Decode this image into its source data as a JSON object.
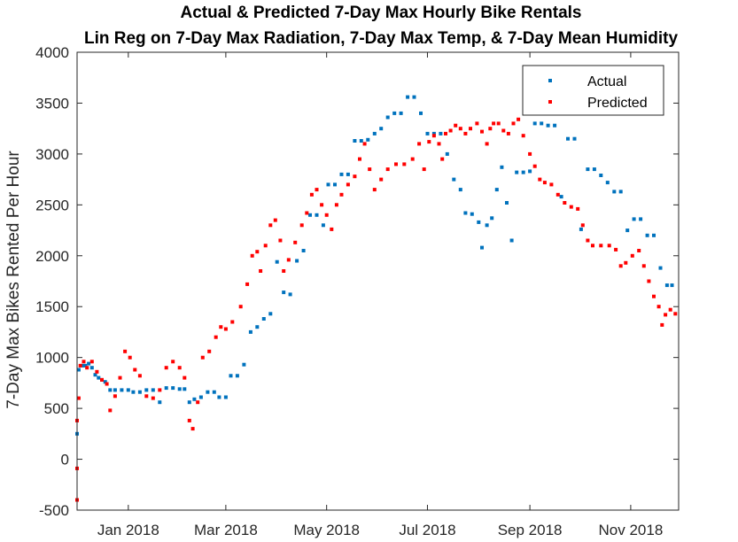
{
  "chart_data": {
    "type": "scatter",
    "title": [
      "Actual & Predicted 7-Day Max Hourly Bike Rentals",
      "Lin Reg on 7-Day Max Radiation, 7-Day Max Temp, & 7-Day Mean Humidity"
    ],
    "xlabel": "",
    "ylabel": "7-Day Max Bikes Rented Per Hour",
    "xlim": [
      "2017-12-01",
      "2018-11-30"
    ],
    "ylim": [
      -500,
      4000
    ],
    "yticks": [
      -500,
      0,
      500,
      1000,
      1500,
      2000,
      2500,
      3000,
      3500,
      4000
    ],
    "yticklabels": [
      "-500",
      "0",
      "500",
      "1000",
      "1500",
      "2000",
      "2500",
      "3000",
      "3500",
      "4000"
    ],
    "xticks": [
      "2018-01-01",
      "2018-03-01",
      "2018-05-01",
      "2018-07-01",
      "2018-09-01",
      "2018-11-01"
    ],
    "xticklabels": [
      "Jan 2018",
      "Mar 2018",
      "May 2018",
      "Jul 2018",
      "Sep 2018",
      "Nov 2018"
    ],
    "legend": {
      "position": "top-right",
      "entries": [
        "Actual",
        "Predicted"
      ]
    },
    "grid": false,
    "series": [
      {
        "name": "Actual",
        "color": "#0072BD",
        "points": [
          [
            "2017-12-01",
            250
          ],
          [
            "2017-12-02",
            880
          ],
          [
            "2017-12-04",
            920
          ],
          [
            "2017-12-06",
            920
          ],
          [
            "2017-12-08",
            940
          ],
          [
            "2017-12-10",
            900
          ],
          [
            "2017-12-12",
            830
          ],
          [
            "2017-12-14",
            800
          ],
          [
            "2017-12-16",
            780
          ],
          [
            "2017-12-18",
            760
          ],
          [
            "2017-12-21",
            680
          ],
          [
            "2017-12-24",
            680
          ],
          [
            "2017-12-28",
            680
          ],
          [
            "2018-01-01",
            680
          ],
          [
            "2018-01-04",
            660
          ],
          [
            "2018-01-08",
            660
          ],
          [
            "2018-01-12",
            680
          ],
          [
            "2018-01-16",
            680
          ],
          [
            "2018-01-20",
            560
          ],
          [
            "2018-01-24",
            700
          ],
          [
            "2018-01-28",
            700
          ],
          [
            "2018-02-01",
            690
          ],
          [
            "2018-02-04",
            690
          ],
          [
            "2018-02-07",
            560
          ],
          [
            "2018-02-10",
            590
          ],
          [
            "2018-02-14",
            610
          ],
          [
            "2018-02-18",
            660
          ],
          [
            "2018-02-22",
            660
          ],
          [
            "2018-02-25",
            610
          ],
          [
            "2018-03-01",
            610
          ],
          [
            "2018-03-04",
            820
          ],
          [
            "2018-03-08",
            820
          ],
          [
            "2018-03-12",
            930
          ],
          [
            "2018-03-16",
            1250
          ],
          [
            "2018-03-20",
            1300
          ],
          [
            "2018-03-24",
            1380
          ],
          [
            "2018-03-28",
            1430
          ],
          [
            "2018-04-01",
            1940
          ],
          [
            "2018-04-05",
            1640
          ],
          [
            "2018-04-09",
            1620
          ],
          [
            "2018-04-13",
            1950
          ],
          [
            "2018-04-17",
            2050
          ],
          [
            "2018-04-21",
            2400
          ],
          [
            "2018-04-25",
            2400
          ],
          [
            "2018-04-29",
            2300
          ],
          [
            "2018-05-02",
            2700
          ],
          [
            "2018-05-06",
            2700
          ],
          [
            "2018-05-10",
            2800
          ],
          [
            "2018-05-14",
            2800
          ],
          [
            "2018-05-18",
            3130
          ],
          [
            "2018-05-22",
            3130
          ],
          [
            "2018-05-26",
            3140
          ],
          [
            "2018-05-30",
            3200
          ],
          [
            "2018-06-03",
            3250
          ],
          [
            "2018-06-07",
            3360
          ],
          [
            "2018-06-11",
            3400
          ],
          [
            "2018-06-15",
            3400
          ],
          [
            "2018-06-19",
            3560
          ],
          [
            "2018-06-23",
            3560
          ],
          [
            "2018-06-27",
            3400
          ],
          [
            "2018-07-01",
            3200
          ],
          [
            "2018-07-05",
            3200
          ],
          [
            "2018-07-09",
            3200
          ],
          [
            "2018-07-13",
            3000
          ],
          [
            "2018-07-17",
            2750
          ],
          [
            "2018-07-21",
            2650
          ],
          [
            "2018-07-24",
            2420
          ],
          [
            "2018-07-28",
            2410
          ],
          [
            "2018-08-01",
            2330
          ],
          [
            "2018-08-03",
            2080
          ],
          [
            "2018-08-06",
            2300
          ],
          [
            "2018-08-09",
            2370
          ],
          [
            "2018-08-12",
            2650
          ],
          [
            "2018-08-15",
            2870
          ],
          [
            "2018-08-18",
            2520
          ],
          [
            "2018-08-21",
            2150
          ],
          [
            "2018-08-24",
            2820
          ],
          [
            "2018-08-28",
            2820
          ],
          [
            "2018-09-01",
            2830
          ],
          [
            "2018-09-04",
            3300
          ],
          [
            "2018-09-08",
            3300
          ],
          [
            "2018-09-12",
            3280
          ],
          [
            "2018-09-16",
            3280
          ],
          [
            "2018-09-20",
            2580
          ],
          [
            "2018-09-24",
            3150
          ],
          [
            "2018-09-28",
            3150
          ],
          [
            "2018-10-02",
            2260
          ],
          [
            "2018-10-06",
            2850
          ],
          [
            "2018-10-10",
            2850
          ],
          [
            "2018-10-14",
            2790
          ],
          [
            "2018-10-18",
            2720
          ],
          [
            "2018-10-22",
            2630
          ],
          [
            "2018-10-26",
            2630
          ],
          [
            "2018-10-30",
            2250
          ],
          [
            "2018-11-03",
            2360
          ],
          [
            "2018-11-07",
            2360
          ],
          [
            "2018-11-11",
            2200
          ],
          [
            "2018-11-15",
            2200
          ],
          [
            "2018-11-19",
            1880
          ],
          [
            "2018-11-23",
            1710
          ],
          [
            "2018-11-26",
            1710
          ]
        ]
      },
      {
        "name": "Predicted",
        "color": "#FF0000",
        "points": [
          [
            "2017-12-01",
            -400
          ],
          [
            "2017-12-01",
            -90
          ],
          [
            "2017-12-01",
            380
          ],
          [
            "2017-12-02",
            600
          ],
          [
            "2017-12-03",
            920
          ],
          [
            "2017-12-05",
            960
          ],
          [
            "2017-12-07",
            900
          ],
          [
            "2017-12-10",
            960
          ],
          [
            "2017-12-13",
            860
          ],
          [
            "2017-12-16",
            780
          ],
          [
            "2017-12-19",
            740
          ],
          [
            "2017-12-21",
            480
          ],
          [
            "2017-12-24",
            620
          ],
          [
            "2017-12-27",
            800
          ],
          [
            "2017-12-30",
            1060
          ],
          [
            "2018-01-02",
            1000
          ],
          [
            "2018-01-05",
            880
          ],
          [
            "2018-01-08",
            820
          ],
          [
            "2018-01-12",
            620
          ],
          [
            "2018-01-16",
            600
          ],
          [
            "2018-01-20",
            680
          ],
          [
            "2018-01-24",
            900
          ],
          [
            "2018-01-28",
            960
          ],
          [
            "2018-02-01",
            900
          ],
          [
            "2018-02-04",
            800
          ],
          [
            "2018-02-07",
            380
          ],
          [
            "2018-02-09",
            300
          ],
          [
            "2018-02-12",
            560
          ],
          [
            "2018-02-15",
            1000
          ],
          [
            "2018-02-19",
            1060
          ],
          [
            "2018-02-23",
            1200
          ],
          [
            "2018-02-26",
            1300
          ],
          [
            "2018-03-01",
            1280
          ],
          [
            "2018-03-05",
            1350
          ],
          [
            "2018-03-10",
            1500
          ],
          [
            "2018-03-14",
            1720
          ],
          [
            "2018-03-17",
            2000
          ],
          [
            "2018-03-20",
            2040
          ],
          [
            "2018-03-22",
            1850
          ],
          [
            "2018-03-25",
            2100
          ],
          [
            "2018-03-28",
            2300
          ],
          [
            "2018-03-31",
            2350
          ],
          [
            "2018-04-03",
            2150
          ],
          [
            "2018-04-05",
            1850
          ],
          [
            "2018-04-08",
            1960
          ],
          [
            "2018-04-12",
            2130
          ],
          [
            "2018-04-16",
            2300
          ],
          [
            "2018-04-19",
            2420
          ],
          [
            "2018-04-22",
            2600
          ],
          [
            "2018-04-25",
            2650
          ],
          [
            "2018-04-28",
            2500
          ],
          [
            "2018-05-01",
            2400
          ],
          [
            "2018-05-04",
            2260
          ],
          [
            "2018-05-07",
            2500
          ],
          [
            "2018-05-10",
            2600
          ],
          [
            "2018-05-14",
            2700
          ],
          [
            "2018-05-18",
            2780
          ],
          [
            "2018-05-21",
            2950
          ],
          [
            "2018-05-24",
            3100
          ],
          [
            "2018-05-27",
            2850
          ],
          [
            "2018-05-30",
            2650
          ],
          [
            "2018-06-03",
            2750
          ],
          [
            "2018-06-07",
            2850
          ],
          [
            "2018-06-12",
            2900
          ],
          [
            "2018-06-17",
            2900
          ],
          [
            "2018-06-22",
            2950
          ],
          [
            "2018-06-26",
            3100
          ],
          [
            "2018-06-29",
            2850
          ],
          [
            "2018-07-02",
            3120
          ],
          [
            "2018-07-05",
            3180
          ],
          [
            "2018-07-08",
            3100
          ],
          [
            "2018-07-10",
            2950
          ],
          [
            "2018-07-12",
            3200
          ],
          [
            "2018-07-15",
            3230
          ],
          [
            "2018-07-18",
            3280
          ],
          [
            "2018-07-21",
            3250
          ],
          [
            "2018-07-24",
            3200
          ],
          [
            "2018-07-27",
            3250
          ],
          [
            "2018-07-31",
            3300
          ],
          [
            "2018-08-03",
            3220
          ],
          [
            "2018-08-06",
            3100
          ],
          [
            "2018-08-08",
            3250
          ],
          [
            "2018-08-10",
            3300
          ],
          [
            "2018-08-13",
            3300
          ],
          [
            "2018-08-16",
            3230
          ],
          [
            "2018-08-19",
            3200
          ],
          [
            "2018-08-22",
            3300
          ],
          [
            "2018-08-25",
            3340
          ],
          [
            "2018-08-28",
            3180
          ],
          [
            "2018-09-01",
            3000
          ],
          [
            "2018-09-04",
            2880
          ],
          [
            "2018-09-07",
            2750
          ],
          [
            "2018-09-10",
            2720
          ],
          [
            "2018-09-14",
            2700
          ],
          [
            "2018-09-18",
            2600
          ],
          [
            "2018-09-22",
            2520
          ],
          [
            "2018-09-26",
            2480
          ],
          [
            "2018-09-30",
            2460
          ],
          [
            "2018-10-03",
            2300
          ],
          [
            "2018-10-06",
            2150
          ],
          [
            "2018-10-09",
            2100
          ],
          [
            "2018-10-14",
            2100
          ],
          [
            "2018-10-19",
            2100
          ],
          [
            "2018-10-23",
            2060
          ],
          [
            "2018-10-26",
            1900
          ],
          [
            "2018-10-29",
            1930
          ],
          [
            "2018-11-02",
            2000
          ],
          [
            "2018-11-06",
            2050
          ],
          [
            "2018-11-09",
            1900
          ],
          [
            "2018-11-12",
            1750
          ],
          [
            "2018-11-15",
            1600
          ],
          [
            "2018-11-18",
            1500
          ],
          [
            "2018-11-20",
            1320
          ],
          [
            "2018-11-22",
            1420
          ],
          [
            "2018-11-25",
            1470
          ],
          [
            "2018-11-28",
            1430
          ]
        ]
      }
    ]
  }
}
